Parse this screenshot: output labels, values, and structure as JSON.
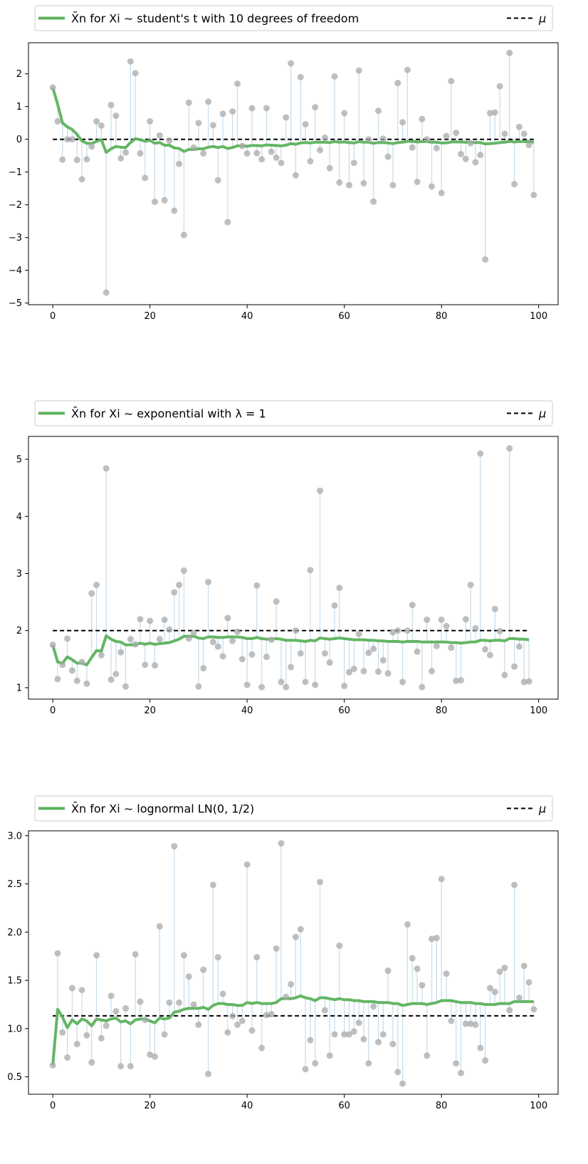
{
  "colors": {
    "running_mean": "#5cb25c",
    "sample_point": "#a9a9a9",
    "stem": "#c6dceb",
    "mu_line": "#000000"
  },
  "chart_data": [
    {
      "type": "scatter",
      "title": "",
      "legend": {
        "placement": "top, outside above the axes",
        "mean_label_prefix": "X̄n for Xi ∼",
        "mean_label_dist": "student's t with 10 degrees of freedom",
        "mu_label": "μ"
      },
      "xlim": [
        -5,
        104
      ],
      "ylim": [
        -5.05,
        2.95
      ],
      "xticks": [
        0,
        20,
        40,
        60,
        80,
        100
      ],
      "yticks": [
        -5,
        -4,
        -3,
        -2,
        -1,
        0,
        1,
        2
      ],
      "ytick_labels": [
        "−5",
        "−4",
        "−3",
        "−2",
        "−1",
        "0",
        "1",
        "2"
      ],
      "mu": 0,
      "samples": [
        1.58,
        0.55,
        -0.62,
        0.0,
        0.0,
        -0.63,
        -1.22,
        -0.61,
        -0.22,
        0.55,
        0.42,
        -4.68,
        1.05,
        0.72,
        -0.58,
        -0.4,
        2.38,
        2.02,
        -0.43,
        -1.18,
        0.55,
        -1.91,
        0.12,
        -1.86,
        -0.04,
        -2.18,
        -0.75,
        -2.92,
        1.12,
        -0.25,
        0.5,
        -0.43,
        1.15,
        0.43,
        -1.25,
        0.78,
        -2.53,
        0.85,
        1.7,
        -0.2,
        -0.43,
        0.95,
        -0.42,
        -0.61,
        0.95,
        -0.38,
        -0.56,
        -0.72,
        0.67,
        2.32,
        -1.1,
        1.9,
        0.46,
        -0.67,
        0.98,
        -0.33,
        0.05,
        -0.88,
        1.92,
        -1.32,
        0.8,
        -1.4,
        -0.72,
        2.1,
        -1.34,
        0.0,
        -1.9,
        0.87,
        0.02,
        -0.53,
        -1.4,
        1.72,
        0.52,
        2.12,
        -0.25,
        -1.3,
        0.62,
        0.0,
        -1.44,
        -0.27,
        -1.64,
        0.1,
        1.78,
        0.2,
        -0.45,
        -0.6,
        -0.12,
        -0.7,
        -0.48,
        -3.67,
        0.8,
        0.82,
        1.62,
        0.17,
        2.64,
        -1.37,
        0.38,
        0.17,
        -0.17,
        -1.7
      ],
      "running_mean": [
        1.58,
        1.07,
        0.5,
        0.38,
        0.3,
        0.15,
        -0.05,
        -0.12,
        -0.13,
        -0.06,
        -0.01,
        -0.4,
        -0.29,
        -0.22,
        -0.24,
        -0.25,
        -0.1,
        0.02,
        -0.01,
        -0.06,
        -0.03,
        -0.12,
        -0.1,
        -0.18,
        -0.18,
        -0.26,
        -0.28,
        -0.37,
        -0.31,
        -0.31,
        -0.29,
        -0.29,
        -0.24,
        -0.22,
        -0.25,
        -0.22,
        -0.28,
        -0.25,
        -0.2,
        -0.2,
        -0.21,
        -0.19,
        -0.19,
        -0.2,
        -0.17,
        -0.18,
        -0.19,
        -0.2,
        -0.18,
        -0.13,
        -0.15,
        -0.11,
        -0.1,
        -0.11,
        -0.09,
        -0.09,
        -0.09,
        -0.1,
        -0.07,
        -0.09,
        -0.08,
        -0.1,
        -0.11,
        -0.07,
        -0.09,
        -0.09,
        -0.12,
        -0.1,
        -0.1,
        -0.11,
        -0.13,
        -0.1,
        -0.09,
        -0.06,
        -0.06,
        -0.08,
        -0.07,
        -0.07,
        -0.09,
        -0.09,
        -0.11,
        -0.11,
        -0.08,
        -0.08,
        -0.08,
        -0.09,
        -0.09,
        -0.1,
        -0.1,
        -0.14,
        -0.13,
        -0.12,
        -0.1,
        -0.09,
        -0.06,
        -0.08,
        -0.07,
        -0.07,
        -0.07,
        -0.09
      ],
      "samples_label": "",
      "xlabel": "",
      "ylabel": ""
    },
    {
      "type": "scatter",
      "title": "",
      "legend": {
        "placement": "top, outside above the axes",
        "mean_label_prefix": "X̄n for Xi ∼",
        "mean_label_dist": "exponential with λ = 1",
        "mu_label": "μ"
      },
      "xlim": [
        -5,
        104
      ],
      "ylim": [
        0.8,
        5.4
      ],
      "xticks": [
        0,
        20,
        40,
        60,
        80,
        100
      ],
      "yticks": [
        1,
        2,
        3,
        4,
        5
      ],
      "ytick_labels": [
        "1",
        "2",
        "3",
        "4",
        "5"
      ],
      "mu": 2,
      "samples": [
        1.75,
        1.15,
        1.4,
        1.86,
        1.3,
        1.12,
        1.45,
        1.07,
        2.65,
        2.8,
        1.57,
        4.84,
        1.14,
        1.24,
        1.62,
        1.02,
        1.85,
        1.76,
        2.2,
        1.4,
        2.17,
        1.39,
        1.85,
        2.19,
        2.02,
        2.67,
        2.8,
        3.05,
        1.86,
        1.96,
        1.02,
        1.34,
        2.85,
        1.8,
        1.72,
        1.55,
        2.22,
        1.82,
        1.98,
        1.5,
        1.05,
        1.58,
        2.79,
        1.01,
        1.54,
        1.84,
        2.51,
        1.1,
        1.01,
        1.36,
        2.0,
        1.6,
        1.1,
        3.06,
        1.05,
        4.45,
        1.6,
        1.44,
        2.44,
        2.75,
        1.03,
        1.27,
        1.33,
        1.94,
        1.29,
        1.61,
        1.68,
        1.28,
        1.48,
        1.25,
        1.97,
        2.0,
        1.1,
        2.0,
        2.45,
        1.63,
        1.01,
        2.19,
        1.29,
        1.73,
        2.19,
        2.08,
        1.7,
        1.12,
        1.13,
        2.2,
        2.8,
        2.04,
        5.1,
        1.67,
        1.57,
        2.38,
        1.99,
        1.22,
        5.19,
        1.37,
        1.72,
        1.1,
        1.11
      ],
      "running_mean": [
        1.75,
        1.45,
        1.43,
        1.54,
        1.49,
        1.43,
        1.43,
        1.4,
        1.53,
        1.65,
        1.64,
        1.91,
        1.85,
        1.81,
        1.8,
        1.75,
        1.75,
        1.75,
        1.78,
        1.76,
        1.78,
        1.76,
        1.77,
        1.78,
        1.79,
        1.82,
        1.85,
        1.9,
        1.9,
        1.9,
        1.87,
        1.86,
        1.89,
        1.89,
        1.88,
        1.88,
        1.89,
        1.89,
        1.89,
        1.88,
        1.86,
        1.86,
        1.88,
        1.86,
        1.85,
        1.85,
        1.86,
        1.85,
        1.83,
        1.83,
        1.83,
        1.82,
        1.81,
        1.83,
        1.82,
        1.87,
        1.86,
        1.85,
        1.86,
        1.87,
        1.86,
        1.85,
        1.84,
        1.84,
        1.84,
        1.83,
        1.83,
        1.82,
        1.82,
        1.81,
        1.81,
        1.81,
        1.8,
        1.81,
        1.81,
        1.81,
        1.8,
        1.8,
        1.8,
        1.8,
        1.8,
        1.8,
        1.79,
        1.79,
        1.78,
        1.79,
        1.8,
        1.8,
        1.83,
        1.83,
        1.82,
        1.83,
        1.83,
        1.82,
        1.86,
        1.86,
        1.85,
        1.85,
        1.84
      ],
      "samples_label": "",
      "xlabel": "",
      "ylabel": ""
    },
    {
      "type": "scatter",
      "title": "",
      "legend": {
        "placement": "top, outside above the axes",
        "mean_label_prefix": "X̄n for Xi ∼",
        "mean_label_dist": "lognormal LN(0, 1/2)",
        "mu_label": "μ"
      },
      "xlim": [
        -5,
        104
      ],
      "ylim": [
        0.32,
        3.05
      ],
      "xticks": [
        0,
        20,
        40,
        60,
        80,
        100
      ],
      "yticks": [
        0.5,
        1.0,
        1.5,
        2.0,
        2.5,
        3.0
      ],
      "ytick_labels": [
        "0.5",
        "1.0",
        "1.5",
        "2.0",
        "2.5",
        "3.0"
      ],
      "mu": 1.133,
      "samples": [
        0.62,
        1.78,
        0.96,
        0.7,
        1.42,
        0.84,
        1.4,
        0.93,
        0.65,
        1.76,
        0.9,
        1.03,
        1.34,
        1.18,
        0.61,
        1.21,
        0.61,
        1.77,
        1.28,
        1.09,
        0.73,
        0.71,
        2.06,
        0.94,
        1.27,
        2.89,
        1.27,
        1.76,
        1.54,
        1.25,
        1.04,
        1.61,
        0.53,
        2.49,
        1.74,
        1.36,
        0.96,
        1.13,
        1.04,
        1.08,
        2.7,
        0.98,
        1.74,
        0.8,
        1.14,
        1.15,
        1.83,
        2.92,
        1.33,
        1.46,
        1.95,
        2.03,
        0.58,
        0.88,
        0.64,
        2.52,
        1.19,
        0.72,
        0.94,
        1.86,
        0.94,
        0.94,
        0.97,
        1.06,
        0.89,
        0.64,
        1.23,
        0.86,
        0.94,
        1.6,
        0.84,
        0.55,
        0.43,
        2.08,
        1.73,
        1.62,
        1.45,
        0.72,
        1.93,
        1.94,
        2.55,
        1.57,
        1.08,
        0.64,
        0.54,
        1.05,
        1.05,
        1.04,
        0.8,
        0.67,
        1.42,
        1.38,
        1.59,
        1.63,
        1.19,
        2.49,
        1.32,
        1.65,
        1.48,
        1.2
      ],
      "running_mean": [
        0.62,
        1.2,
        1.12,
        1.01,
        1.09,
        1.05,
        1.1,
        1.08,
        1.03,
        1.1,
        1.09,
        1.08,
        1.1,
        1.11,
        1.07,
        1.08,
        1.05,
        1.09,
        1.1,
        1.1,
        1.08,
        1.06,
        1.11,
        1.1,
        1.11,
        1.17,
        1.18,
        1.2,
        1.21,
        1.21,
        1.21,
        1.22,
        1.2,
        1.24,
        1.26,
        1.26,
        1.25,
        1.25,
        1.24,
        1.24,
        1.27,
        1.26,
        1.27,
        1.26,
        1.26,
        1.26,
        1.27,
        1.31,
        1.31,
        1.31,
        1.32,
        1.34,
        1.32,
        1.31,
        1.29,
        1.32,
        1.32,
        1.31,
        1.3,
        1.31,
        1.3,
        1.3,
        1.29,
        1.29,
        1.28,
        1.28,
        1.28,
        1.27,
        1.27,
        1.27,
        1.26,
        1.26,
        1.24,
        1.25,
        1.26,
        1.26,
        1.26,
        1.25,
        1.26,
        1.27,
        1.29,
        1.29,
        1.29,
        1.28,
        1.27,
        1.27,
        1.27,
        1.26,
        1.26,
        1.25,
        1.25,
        1.25,
        1.26,
        1.26,
        1.26,
        1.28,
        1.28,
        1.28,
        1.28,
        1.28
      ],
      "samples_label": "",
      "xlabel": "",
      "ylabel": ""
    }
  ]
}
